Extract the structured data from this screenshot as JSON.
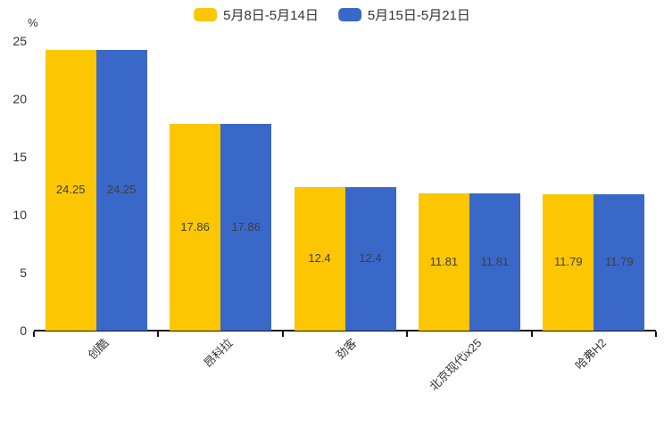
{
  "chart": {
    "unit_label": "%"
  },
  "chart_data": {
    "type": "bar",
    "title": "",
    "categories": [
      "创酷",
      "昂科拉",
      "劲客",
      "北京现代ix25",
      "哈弗H2"
    ],
    "series": [
      {
        "name": "5月8日-5月14日",
        "color": "#FCC603",
        "values": [
          24.25,
          17.86,
          12.4,
          11.81,
          11.79
        ]
      },
      {
        "name": "5月15日-5月21日",
        "color": "#3A68C9",
        "values": [
          24.25,
          17.86,
          12.4,
          11.81,
          11.79
        ]
      }
    ],
    "xlabel": "",
    "ylabel": "%",
    "ylim": [
      0,
      25
    ],
    "y_ticks": [
      0,
      5,
      10,
      15,
      20,
      25
    ],
    "grid": false,
    "legend_position": "top-center",
    "data_labels": "inside-middle",
    "category_label_rotation_deg": 45,
    "axis_color": "#141414",
    "text_color": "#333333"
  }
}
